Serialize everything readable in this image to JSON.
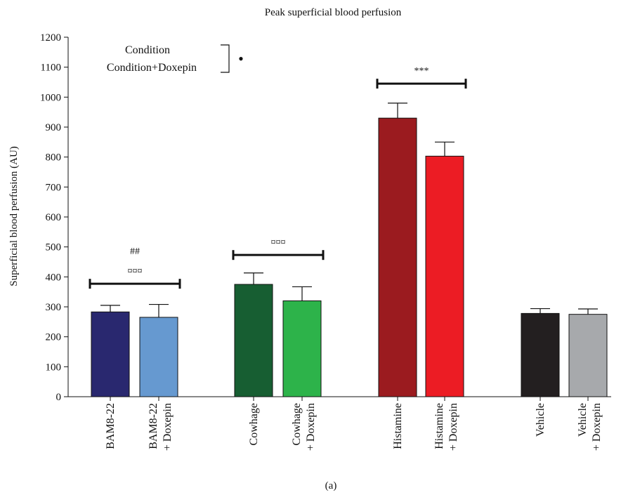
{
  "chart_data": {
    "type": "bar",
    "title": "Peak superficial blood perfusion",
    "ylabel": "Superficial blood perfusion (AU)",
    "ylim": [
      0,
      1200
    ],
    "yticks": [
      0,
      100,
      200,
      300,
      400,
      500,
      600,
      700,
      800,
      900,
      1000,
      1100,
      1200
    ],
    "caption": "(a)",
    "categories": [
      {
        "line1": "BAM8-22",
        "line2": ""
      },
      {
        "line1": "BAM8-22",
        "line2": "+ Doxepin"
      },
      {
        "line1": "Cowhage",
        "line2": ""
      },
      {
        "line1": "Cowhage",
        "line2": "+ Doxepin"
      },
      {
        "line1": "Histamine",
        "line2": ""
      },
      {
        "line1": "Histamine",
        "line2": "+ Doxepin"
      },
      {
        "line1": "Vehicle",
        "line2": ""
      },
      {
        "line1": "Vehicle",
        "line2": "+ Doxepin"
      }
    ],
    "values": [
      283,
      265,
      375,
      320,
      930,
      803,
      278,
      275
    ],
    "errors": [
      22,
      43,
      38,
      47,
      50,
      47,
      16,
      18
    ],
    "colors": [
      "#29286f",
      "#6699d0",
      "#175e32",
      "#2db34a",
      "#9b1b1f",
      "#ec1c24",
      "#231f20",
      "#a7a9ac"
    ],
    "legend": {
      "line1": "Condition",
      "line2": "Condition+Doxepin",
      "marker": "•"
    },
    "annotations": [
      {
        "group": 0,
        "y": 377,
        "symbol": "¤¤¤",
        "extra": "##"
      },
      {
        "group": 1,
        "y": 473,
        "symbol": "¤¤¤",
        "extra": ""
      },
      {
        "group": 2,
        "y": 1045,
        "symbol": "***",
        "extra": ""
      }
    ]
  }
}
